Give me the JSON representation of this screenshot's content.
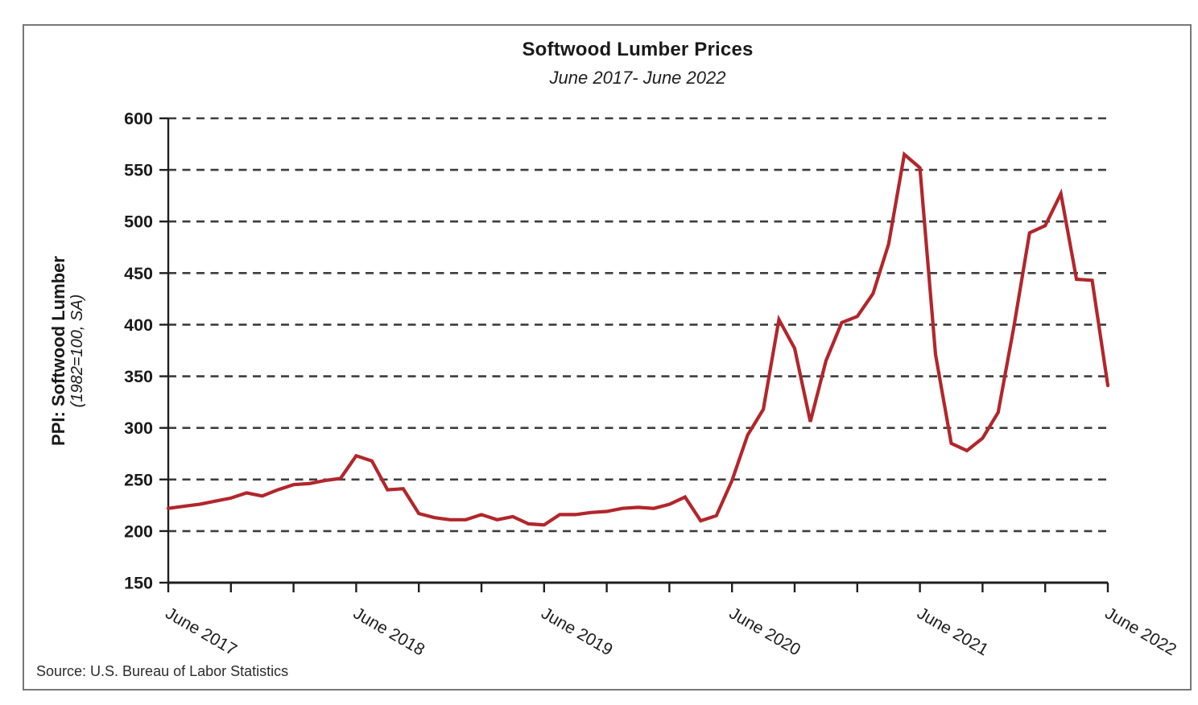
{
  "figure": {
    "title": "Softwood Lumber Prices",
    "subtitle": "June 2017- June 2022",
    "y_axis_title": "PPI: Softwood Lumber",
    "y_axis_subtitle": "(1982=100, SA)",
    "source": "Source: U.S. Bureau of Labor Statistics"
  },
  "chart_data": {
    "type": "line",
    "title": "Softwood Lumber Prices",
    "subtitle": "June 2017- June 2022",
    "xlabel": "",
    "ylabel": "PPI: Softwood Lumber",
    "ylabel_note": "(1982=100, SA)",
    "ylim": [
      150,
      600
    ],
    "y_ticks": [
      150,
      200,
      250,
      300,
      350,
      400,
      450,
      500,
      550,
      600
    ],
    "y_gridlines": [
      200,
      250,
      300,
      350,
      400,
      450,
      500,
      550,
      600
    ],
    "grid": "horizontal dashed",
    "legend": "none",
    "frequency": "monthly",
    "x_minor_tick_interval_months": 4,
    "x_tick_labels": [
      "June 2017",
      "June 2018",
      "June 2019",
      "June 2020",
      "June 2021",
      "June 2022"
    ],
    "line_color": "#b2262b",
    "x_months": [
      "Jun 2017",
      "Jul 2017",
      "Aug 2017",
      "Sep 2017",
      "Oct 2017",
      "Nov 2017",
      "Dec 2017",
      "Jan 2018",
      "Feb 2018",
      "Mar 2018",
      "Apr 2018",
      "May 2018",
      "Jun 2018",
      "Jul 2018",
      "Aug 2018",
      "Sep 2018",
      "Oct 2018",
      "Nov 2018",
      "Dec 2018",
      "Jan 2019",
      "Feb 2019",
      "Mar 2019",
      "Apr 2019",
      "May 2019",
      "Jun 2019",
      "Jul 2019",
      "Aug 2019",
      "Sep 2019",
      "Oct 2019",
      "Nov 2019",
      "Dec 2019",
      "Jan 2020",
      "Feb 2020",
      "Mar 2020",
      "Apr 2020",
      "May 2020",
      "Jun 2020",
      "Jul 2020",
      "Aug 2020",
      "Sep 2020",
      "Oct 2020",
      "Nov 2020",
      "Dec 2020",
      "Jan 2021",
      "Feb 2021",
      "Mar 2021",
      "Apr 2021",
      "May 2021",
      "Jun 2021",
      "Jul 2021",
      "Aug 2021",
      "Sep 2021",
      "Oct 2021",
      "Nov 2021",
      "Dec 2021",
      "Jan 2022",
      "Feb 2022",
      "Mar 2022",
      "Apr 2022",
      "May 2022",
      "Jun 2022"
    ],
    "values": [
      222,
      224,
      226,
      229,
      232,
      237,
      234,
      240,
      245,
      246,
      249,
      251,
      273,
      268,
      240,
      241,
      217,
      213,
      211,
      211,
      216,
      211,
      214,
      207,
      206,
      216,
      216,
      218,
      219,
      222,
      223,
      222,
      226,
      233,
      210,
      215,
      249,
      293,
      318,
      405,
      377,
      306,
      365,
      402,
      408,
      430,
      478,
      565,
      552,
      371,
      285,
      278,
      290,
      315,
      398,
      489,
      496,
      527,
      444,
      443,
      341
    ]
  },
  "style": {
    "accent": "#b2262b",
    "axis_color": "#1f1f1f",
    "grid_color": "#3d3d3d",
    "text_color": "#1a1a1a",
    "border_color": "#787878",
    "background": "#ffffff"
  }
}
